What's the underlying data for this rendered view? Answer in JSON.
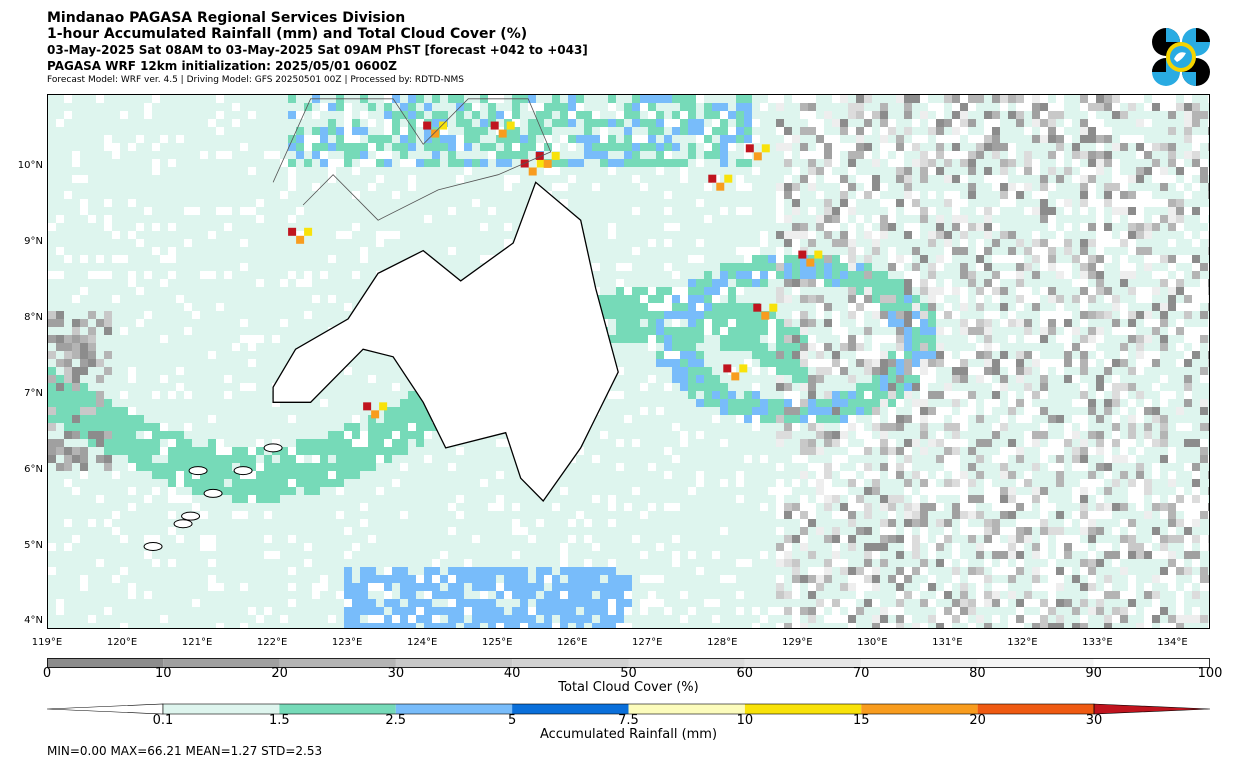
{
  "header": {
    "title": "Mindanao PAGASA Regional Services Division",
    "subtitle": "1-hour Accumulated Rainfall (mm) and Total Cloud Cover (%)",
    "valid_time": "03-May-2025 Sat 08AM to 03-May-2025 Sat 09AM PhST [forecast +042 to +043]",
    "init": "PAGASA WRF 12km initialization: 2025/05/01 0600Z",
    "model_info": "Forecast Model: WRF ver. 4.5 | Driving Model: GFS 20250501 00Z | Processed by: RDTD-NMS"
  },
  "map": {
    "lon_range": [
      119,
      134.5
    ],
    "lat_range": [
      3.9,
      10.95
    ],
    "lat_labels": [
      "10°N",
      "9°N",
      "8°N",
      "7°N",
      "6°N",
      "5°N",
      "4°N"
    ],
    "lon_labels": [
      "119°E",
      "120°E",
      "121°E",
      "122°E",
      "123°E",
      "124°E",
      "125°E",
      "126°E",
      "127°E",
      "128°E",
      "129°E",
      "130°E",
      "131°E",
      "132°E",
      "133°E",
      "134°E"
    ],
    "background_color": "#def5ee",
    "land_color": "#ffffff"
  },
  "cloud_cover_bar": {
    "title": "Total Cloud Cover (%)",
    "ticks": [
      "0",
      "10",
      "20",
      "30",
      "40",
      "50",
      "60",
      "70",
      "80",
      "90",
      "100"
    ],
    "colors": [
      "#8c8c8c",
      "#a0a0a0",
      "#b4b4b4",
      "#c8c8c8",
      "#d2d2d2",
      "#dcdcdc",
      "#e6e6e6",
      "#eeeeee",
      "#f5f5f5",
      "#ffffff"
    ]
  },
  "rainfall_bar": {
    "title": "Accumulated Rainfall (mm)",
    "ticks": [
      "0.1",
      "1.5",
      "2.5",
      "5",
      "7.5",
      "10",
      "15",
      "20",
      "30"
    ],
    "colors": [
      "#def5ee",
      "#76dab8",
      "#78bcfa",
      "#0a6fda",
      "#fcfcbc",
      "#f8e20a",
      "#f89c1e",
      "#ef5a12",
      "#c0141e"
    ]
  },
  "stats": {
    "text": "MIN=0.00   MAX=66.21   MEAN=1.27   STD=2.53"
  }
}
